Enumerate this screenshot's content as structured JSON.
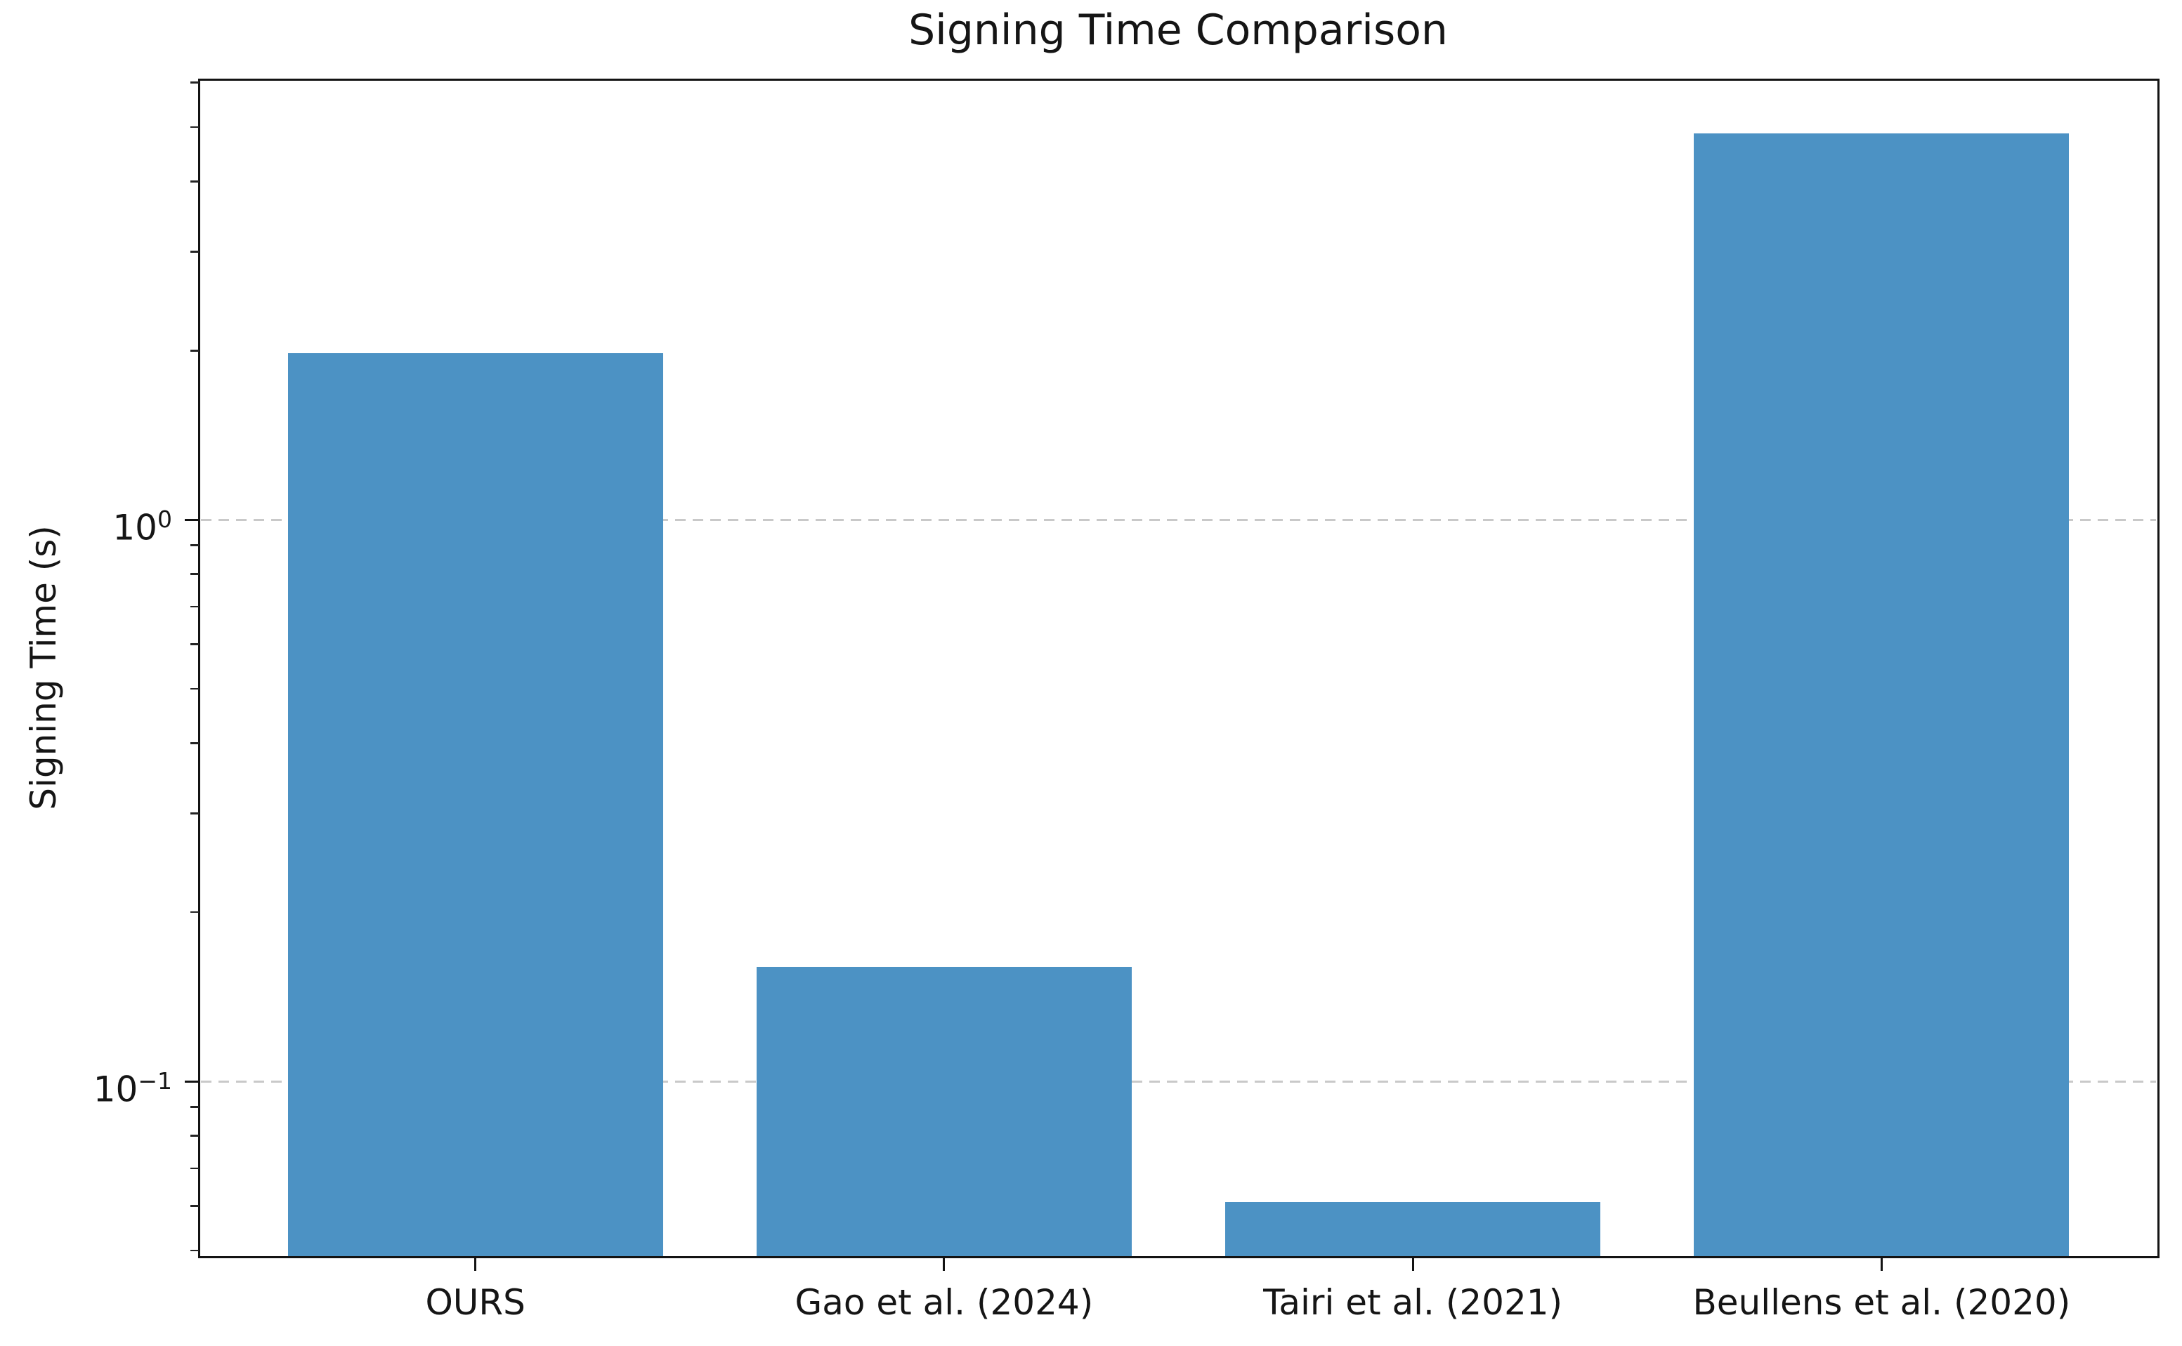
{
  "chart_data": {
    "type": "bar",
    "title": "Signing Time Comparison",
    "ylabel": "Signing Time (s)",
    "xlabel": "",
    "yscale": "log",
    "grid": "horizontal dashed at major ticks",
    "legend": "none",
    "categories": [
      "OURS",
      "Gao et al. (2024)",
      "Tairi et al. (2021)",
      "Beullens et al. (2020)"
    ],
    "values": [
      1.98,
      0.16,
      0.061,
      4.87
    ],
    "value_unit": "s",
    "ylim": [
      0.0487,
      6.08
    ],
    "y_major_ticks": [
      {
        "value": 1,
        "label": "10⁰",
        "base": "10",
        "exponent": "0"
      },
      {
        "value": 0.1,
        "label": "10⁻¹",
        "base": "10",
        "exponent": "−1"
      }
    ],
    "colors": {
      "bar_fill": "#4C92C4",
      "gridline": "#c9c9c9",
      "spine": "#131313",
      "text": "#151515"
    }
  }
}
